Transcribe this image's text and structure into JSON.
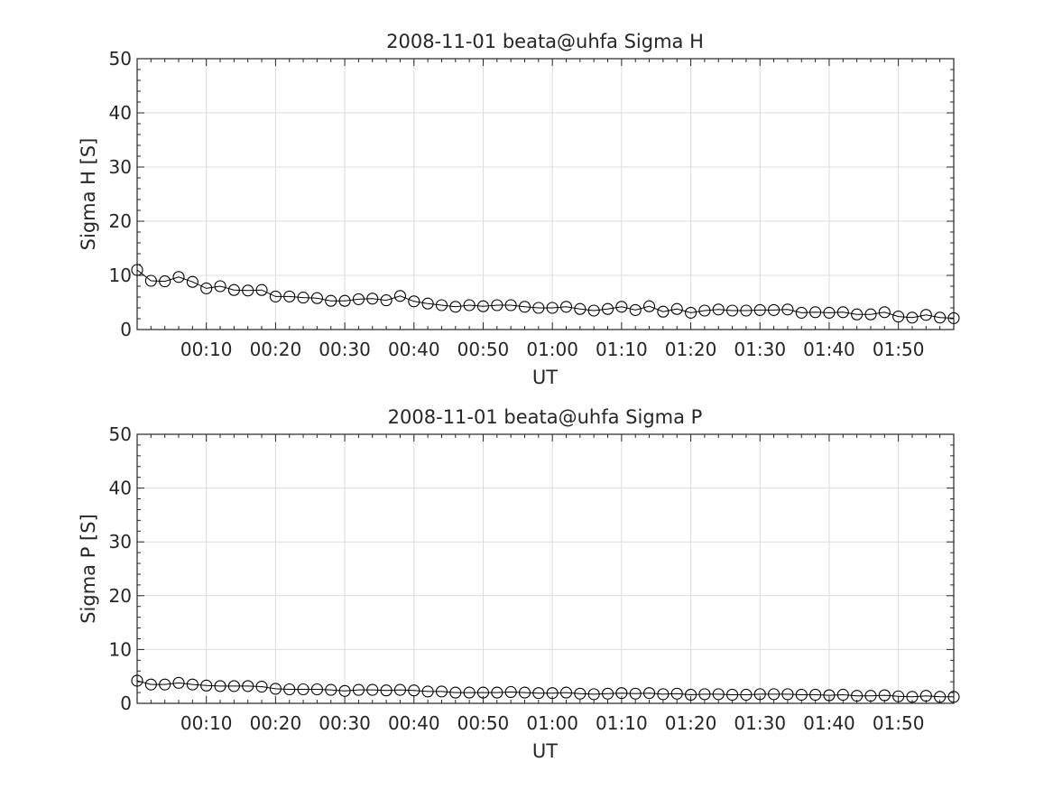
{
  "chart_data": [
    {
      "type": "line",
      "title": "2008-11-01  beata@uhfa Sigma H",
      "xlabel": "UT",
      "ylabel": "Sigma H [S]",
      "ylim": [
        0,
        50
      ],
      "yticks": [
        0,
        10,
        20,
        30,
        40,
        50
      ],
      "xlim": [
        "00:00",
        "01:58"
      ],
      "xtick_labels": [
        "00:10",
        "00:20",
        "00:30",
        "00:40",
        "00:50",
        "01:00",
        "01:10",
        "01:20",
        "01:30",
        "01:40",
        "01:50"
      ],
      "grid": true,
      "marker": "circle",
      "x": [
        "00:00",
        "00:02",
        "00:04",
        "00:06",
        "00:08",
        "00:10",
        "00:12",
        "00:14",
        "00:16",
        "00:18",
        "00:20",
        "00:22",
        "00:24",
        "00:26",
        "00:28",
        "00:30",
        "00:32",
        "00:34",
        "00:36",
        "00:38",
        "00:40",
        "00:42",
        "00:44",
        "00:46",
        "00:48",
        "00:50",
        "00:52",
        "00:54",
        "00:56",
        "00:58",
        "01:00",
        "01:02",
        "01:04",
        "01:06",
        "01:08",
        "01:10",
        "01:12",
        "01:14",
        "01:16",
        "01:18",
        "01:20",
        "01:22",
        "01:24",
        "01:26",
        "01:28",
        "01:30",
        "01:32",
        "01:34",
        "01:36",
        "01:38",
        "01:40",
        "01:42",
        "01:44",
        "01:46",
        "01:48",
        "01:50",
        "01:52",
        "01:54",
        "01:56",
        "01:58"
      ],
      "values": [
        11.0,
        9.0,
        8.9,
        9.7,
        8.8,
        7.6,
        8.0,
        7.3,
        7.2,
        7.3,
        6.1,
        6.1,
        5.9,
        5.8,
        5.3,
        5.3,
        5.6,
        5.7,
        5.4,
        6.2,
        5.2,
        4.8,
        4.5,
        4.2,
        4.5,
        4.3,
        4.5,
        4.5,
        4.2,
        4.0,
        4.0,
        4.2,
        3.8,
        3.5,
        3.8,
        4.2,
        3.6,
        4.3,
        3.3,
        3.8,
        3.1,
        3.5,
        3.7,
        3.5,
        3.5,
        3.6,
        3.6,
        3.7,
        3.1,
        3.2,
        3.1,
        3.2,
        2.8,
        2.8,
        3.2,
        2.4,
        2.2,
        2.7,
        2.2,
        2.1
      ]
    },
    {
      "type": "line",
      "title": "2008-11-01  beata@uhfa Sigma P",
      "xlabel": "UT",
      "ylabel": "Sigma P [S]",
      "ylim": [
        0,
        50
      ],
      "yticks": [
        0,
        10,
        20,
        30,
        40,
        50
      ],
      "xlim": [
        "00:00",
        "01:58"
      ],
      "xtick_labels": [
        "00:10",
        "00:20",
        "00:30",
        "00:40",
        "00:50",
        "01:00",
        "01:10",
        "01:20",
        "01:30",
        "01:40",
        "01:50"
      ],
      "grid": true,
      "marker": "circle",
      "x": [
        "00:00",
        "00:02",
        "00:04",
        "00:06",
        "00:08",
        "00:10",
        "00:12",
        "00:14",
        "00:16",
        "00:18",
        "00:20",
        "00:22",
        "00:24",
        "00:26",
        "00:28",
        "00:30",
        "00:32",
        "00:34",
        "00:36",
        "00:38",
        "00:40",
        "00:42",
        "00:44",
        "00:46",
        "00:48",
        "00:50",
        "00:52",
        "00:54",
        "00:56",
        "00:58",
        "01:00",
        "01:02",
        "01:04",
        "01:06",
        "01:08",
        "01:10",
        "01:12",
        "01:14",
        "01:16",
        "01:18",
        "01:20",
        "01:22",
        "01:24",
        "01:26",
        "01:28",
        "01:30",
        "01:32",
        "01:34",
        "01:36",
        "01:38",
        "01:40",
        "01:42",
        "01:44",
        "01:46",
        "01:48",
        "01:50",
        "01:52",
        "01:54",
        "01:56",
        "01:58"
      ],
      "values": [
        4.2,
        3.5,
        3.5,
        3.8,
        3.5,
        3.3,
        3.2,
        3.2,
        3.2,
        3.1,
        2.7,
        2.6,
        2.6,
        2.6,
        2.5,
        2.3,
        2.5,
        2.5,
        2.4,
        2.5,
        2.4,
        2.2,
        2.2,
        2.0,
        2.0,
        2.0,
        2.0,
        2.1,
        2.0,
        1.9,
        1.9,
        2.0,
        1.8,
        1.7,
        1.8,
        1.9,
        1.8,
        1.9,
        1.7,
        1.8,
        1.6,
        1.7,
        1.7,
        1.6,
        1.6,
        1.7,
        1.7,
        1.7,
        1.6,
        1.6,
        1.5,
        1.6,
        1.4,
        1.4,
        1.5,
        1.3,
        1.2,
        1.4,
        1.2,
        1.2
      ]
    }
  ]
}
